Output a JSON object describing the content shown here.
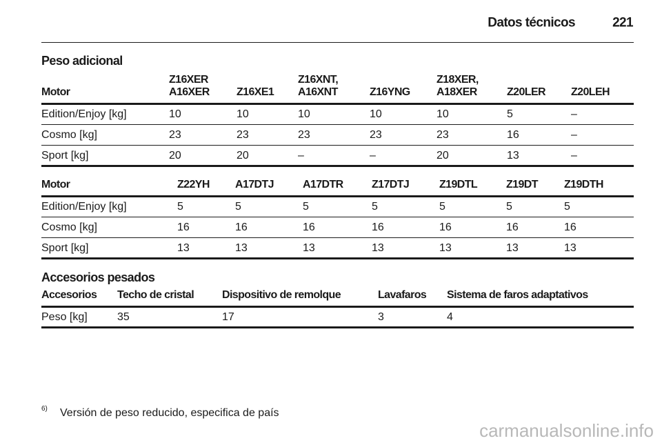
{
  "header": {
    "title": "Datos técnicos",
    "page": "221"
  },
  "section1": {
    "title": "Peso adicional",
    "tables": [
      {
        "columns": [
          [
            "Motor"
          ],
          [
            "Z16XER",
            "A16XER"
          ],
          [
            "Z16XE1"
          ],
          [
            "Z16XNT,",
            "A16XNT"
          ],
          [
            "Z16YNG"
          ],
          [
            "Z18XER,",
            "A18XER"
          ],
          [
            "Z20LER"
          ],
          [
            "Z20LEH"
          ]
        ],
        "rows": [
          [
            "Edition/Enjoy [kg]",
            "10",
            "10",
            "10",
            "10",
            "10",
            "5",
            "–"
          ],
          [
            "Cosmo [kg]",
            "23",
            "23",
            "23",
            "23",
            "23",
            "16",
            "–"
          ],
          [
            "Sport [kg]",
            "20",
            "20",
            "–",
            "–",
            "20",
            "13",
            "–"
          ]
        ]
      },
      {
        "columns": [
          [
            "Motor"
          ],
          [
            "Z22YH"
          ],
          [
            "A17DTJ"
          ],
          [
            "A17DTR"
          ],
          [
            "Z17DTJ"
          ],
          [
            "Z19DTL"
          ],
          [
            "Z19DT"
          ],
          [
            "Z19DTH"
          ]
        ],
        "rows": [
          [
            "Edition/Enjoy [kg]",
            "5",
            "5",
            "5",
            "5",
            "5",
            "5",
            "5"
          ],
          [
            "Cosmo [kg]",
            "16",
            "16",
            "16",
            "16",
            "16",
            "16",
            "16"
          ],
          [
            "Sport [kg]",
            "13",
            "13",
            "13",
            "13",
            "13",
            "13",
            "13"
          ]
        ]
      }
    ]
  },
  "section2": {
    "title": "Accesorios pesados",
    "table": {
      "columns": [
        [
          "Accesorios"
        ],
        [
          "Techo de cristal"
        ],
        [
          "Dispositivo de remolque"
        ],
        [
          "Lavafaros"
        ],
        [
          "Sistema de faros adaptativos"
        ]
      ],
      "rows": [
        [
          "Peso [kg]",
          "35",
          "17",
          "3",
          "4"
        ]
      ]
    }
  },
  "footnote": {
    "mark": "6)",
    "text": "Versión de peso reducido, especifica de país"
  },
  "watermark": "carmanualsonline.info"
}
